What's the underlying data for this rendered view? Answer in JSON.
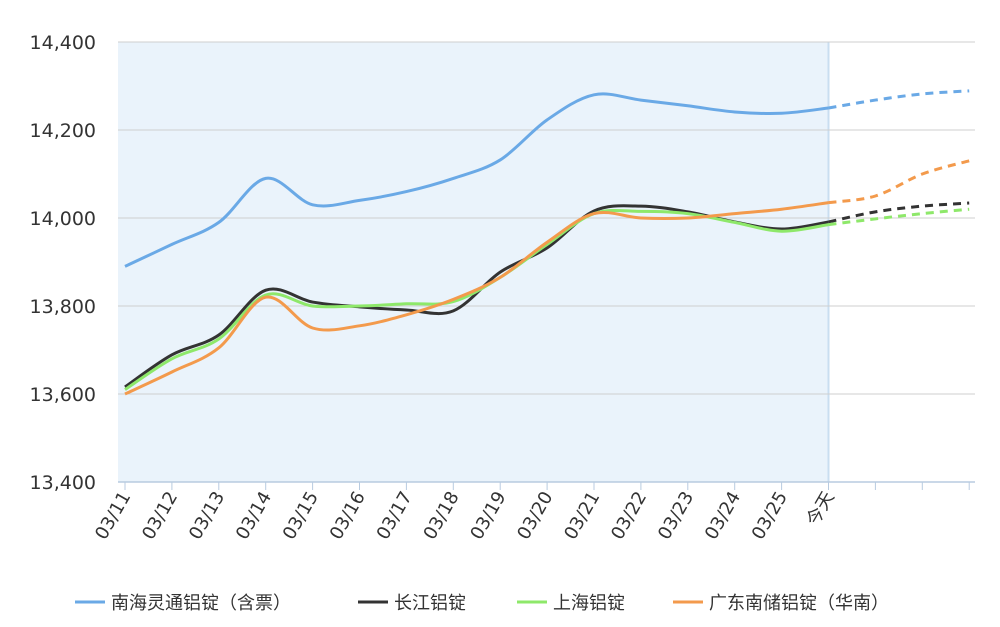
{
  "chart_data": {
    "type": "line",
    "categories": [
      "03/11",
      "03/12",
      "03/13",
      "03/14",
      "03/15",
      "03/16",
      "03/17",
      "03/18",
      "03/19",
      "03/20",
      "03/21",
      "03/22",
      "03/23",
      "03/24",
      "03/25",
      "今天",
      null,
      null,
      null
    ],
    "ylim": [
      13400,
      14400
    ],
    "yticks": [
      {
        "value": 13400,
        "label": "13,400"
      },
      {
        "value": 13600,
        "label": "13,600"
      },
      {
        "value": 13800,
        "label": "13,800"
      },
      {
        "value": 14000,
        "label": "14,000"
      },
      {
        "value": 14200,
        "label": "14,200"
      },
      {
        "value": 14400,
        "label": "14,400"
      }
    ],
    "grid": true,
    "series": [
      {
        "name": "南海灵通铝锭（含票）",
        "color": "#6aa9e6",
        "values": [
          13890,
          13940,
          13990,
          14090,
          14030,
          14040,
          14060,
          14090,
          14132,
          14223,
          14280,
          14268,
          14255,
          14241,
          14238,
          14250,
          14268,
          14282,
          14289
        ]
      },
      {
        "name": "长江铝锭",
        "color": "#333333",
        "values": [
          13616,
          13689,
          13734,
          13836,
          13809,
          13798,
          13791,
          13789,
          13877,
          13932,
          14016,
          14027,
          14014,
          13991,
          13975,
          13991,
          14014,
          14027,
          14034
        ]
      },
      {
        "name": "上海铝锭",
        "color": "#8ee86a",
        "values": [
          13610,
          13680,
          13725,
          13825,
          13800,
          13800,
          13805,
          13810,
          13865,
          13940,
          14010,
          14015,
          14010,
          13990,
          13970,
          13985,
          13998,
          14010,
          14020
        ]
      },
      {
        "name": "广东南储铝锭（华南）",
        "color": "#f39a4c",
        "values": [
          13600,
          13650,
          13705,
          13820,
          13750,
          13755,
          13780,
          13815,
          13865,
          13945,
          14010,
          14000,
          14000,
          14010,
          14020,
          14035,
          14050,
          14100,
          14130
        ]
      }
    ]
  }
}
